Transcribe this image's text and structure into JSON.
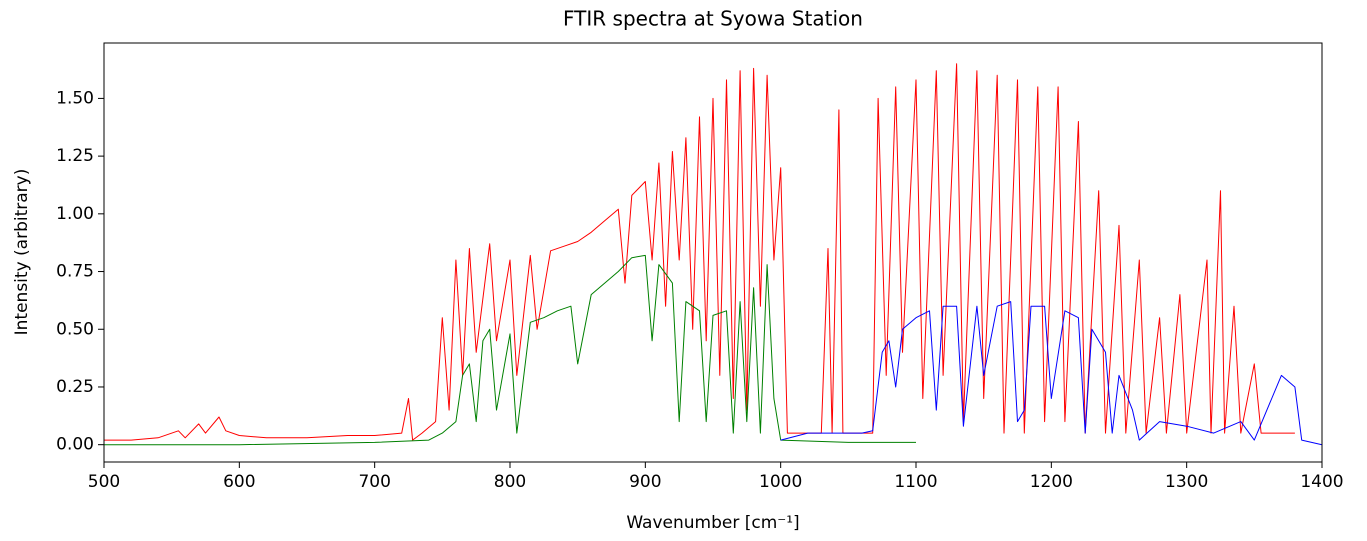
{
  "chart_data": {
    "type": "line",
    "title": "FTIR spectra at Syowa Station",
    "x_label": "Wavenumber [cm⁻¹]",
    "y_label": "Intensity (arbitrary)",
    "xlim": [
      500,
      1400
    ],
    "xticks": [
      500,
      600,
      700,
      800,
      900,
      1000,
      1100,
      1200,
      1300,
      1400
    ],
    "ylim": [
      -0.075,
      1.74
    ],
    "yticks": [
      {
        "value": 0,
        "label": "0.00"
      },
      {
        "value": 0.25,
        "label": "0.25"
      },
      {
        "value": 0.5,
        "label": "0.50"
      },
      {
        "value": 0.75,
        "label": "0.75"
      },
      {
        "value": 1,
        "label": "1.00"
      },
      {
        "value": 1.25,
        "label": "1.25"
      },
      {
        "value": 1.5,
        "label": "1.50"
      }
    ],
    "grid": false,
    "series": [
      {
        "color": "#ff0000",
        "x": [
          500,
          520,
          540,
          555,
          560,
          570,
          575,
          585,
          590,
          600,
          620,
          650,
          680,
          700,
          720,
          725,
          728,
          735,
          745,
          750,
          755,
          760,
          765,
          770,
          775,
          785,
          790,
          800,
          805,
          815,
          820,
          830,
          840,
          850,
          860,
          870,
          880,
          885,
          890,
          900,
          905,
          910,
          915,
          920,
          925,
          930,
          935,
          940,
          945,
          950,
          955,
          960,
          965,
          970,
          975,
          980,
          985,
          990,
          995,
          1000,
          1005,
          1030,
          1035,
          1038,
          1043,
          1046,
          1068,
          1072,
          1078,
          1085,
          1090,
          1100,
          1105,
          1115,
          1120,
          1130,
          1135,
          1145,
          1150,
          1160,
          1165,
          1175,
          1180,
          1190,
          1195,
          1205,
          1210,
          1220,
          1225,
          1235,
          1240,
          1250,
          1255,
          1265,
          1270,
          1280,
          1285,
          1295,
          1300,
          1315,
          1318,
          1325,
          1328,
          1335,
          1340,
          1350,
          1355,
          1380
        ],
        "values": [
          0.02,
          0.02,
          0.03,
          0.06,
          0.03,
          0.09,
          0.05,
          0.12,
          0.06,
          0.04,
          0.03,
          0.03,
          0.04,
          0.04,
          0.05,
          0.2,
          0.02,
          0.05,
          0.1,
          0.55,
          0.15,
          0.8,
          0.3,
          0.85,
          0.4,
          0.87,
          0.45,
          0.8,
          0.3,
          0.82,
          0.5,
          0.84,
          0.86,
          0.88,
          0.92,
          0.97,
          1.02,
          0.7,
          1.08,
          1.14,
          0.8,
          1.22,
          0.6,
          1.27,
          0.8,
          1.33,
          0.5,
          1.42,
          0.45,
          1.5,
          0.3,
          1.58,
          0.2,
          1.62,
          0.15,
          1.63,
          0.6,
          1.6,
          0.8,
          1.2,
          0.05,
          0.05,
          0.85,
          0.05,
          1.45,
          0.05,
          0.05,
          1.5,
          0.3,
          1.55,
          0.4,
          1.58,
          0.2,
          1.62,
          0.3,
          1.65,
          0.1,
          1.62,
          0.2,
          1.6,
          0.05,
          1.58,
          0.05,
          1.55,
          0.1,
          1.55,
          0.1,
          1.4,
          0.05,
          1.1,
          0.05,
          0.95,
          0.05,
          0.8,
          0.05,
          0.55,
          0.05,
          0.65,
          0.05,
          0.8,
          0.05,
          1.1,
          0.05,
          0.6,
          0.05,
          0.35,
          0.05,
          0.05
        ]
      },
      {
        "color": "#008000",
        "x": [
          500,
          600,
          700,
          740,
          750,
          760,
          765,
          770,
          775,
          780,
          785,
          790,
          800,
          805,
          815,
          825,
          835,
          845,
          850,
          860,
          870,
          880,
          890,
          900,
          905,
          910,
          920,
          925,
          930,
          940,
          945,
          950,
          960,
          965,
          970,
          975,
          980,
          985,
          990,
          995,
          1000,
          1050,
          1100
        ],
        "values": [
          0.0,
          0.0,
          0.01,
          0.02,
          0.05,
          0.1,
          0.3,
          0.35,
          0.1,
          0.45,
          0.5,
          0.15,
          0.48,
          0.05,
          0.53,
          0.55,
          0.58,
          0.6,
          0.35,
          0.65,
          0.7,
          0.75,
          0.81,
          0.82,
          0.45,
          0.78,
          0.7,
          0.1,
          0.62,
          0.58,
          0.1,
          0.56,
          0.58,
          0.05,
          0.62,
          0.1,
          0.68,
          0.05,
          0.78,
          0.2,
          0.02,
          0.01,
          0.01
        ]
      },
      {
        "color": "#0000ff",
        "x": [
          1000,
          1020,
          1060,
          1068,
          1075,
          1080,
          1085,
          1090,
          1100,
          1110,
          1115,
          1120,
          1130,
          1135,
          1145,
          1150,
          1160,
          1170,
          1175,
          1180,
          1185,
          1195,
          1200,
          1210,
          1220,
          1225,
          1230,
          1240,
          1245,
          1250,
          1260,
          1265,
          1280,
          1300,
          1320,
          1340,
          1350,
          1370,
          1380,
          1385,
          1400
        ],
        "values": [
          0.02,
          0.05,
          0.05,
          0.06,
          0.4,
          0.45,
          0.25,
          0.5,
          0.55,
          0.58,
          0.15,
          0.6,
          0.6,
          0.08,
          0.6,
          0.3,
          0.6,
          0.62,
          0.1,
          0.15,
          0.6,
          0.6,
          0.2,
          0.58,
          0.55,
          0.05,
          0.5,
          0.4,
          0.05,
          0.3,
          0.15,
          0.02,
          0.1,
          0.08,
          0.05,
          0.1,
          0.02,
          0.3,
          0.25,
          0.02,
          0.0
        ]
      }
    ]
  }
}
